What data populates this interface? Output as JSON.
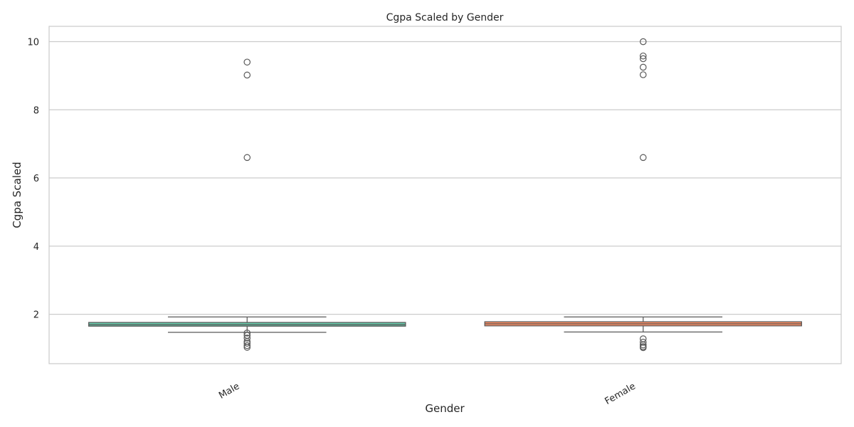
{
  "chart_data": {
    "type": "box",
    "title": "Cgpa Scaled by Gender",
    "xlabel": "Gender",
    "ylabel": "Cgpa Scaled",
    "ylim": [
      0.55,
      10.45
    ],
    "yticks": [
      2,
      4,
      6,
      8,
      10
    ],
    "grid": true,
    "categories": [
      "Male",
      "Female"
    ],
    "colors": [
      "#66c2a5",
      "#fc8d62"
    ],
    "boxes": [
      {
        "category": "Male",
        "whislo": 1.47,
        "q1": 1.65,
        "median": 1.69,
        "q3": 1.76,
        "whishi": 1.92,
        "fliers": [
          1.45,
          1.38,
          1.3,
          1.2,
          1.15,
          1.08,
          1.03,
          6.6,
          9.02,
          9.4
        ]
      },
      {
        "category": "Female",
        "whislo": 1.48,
        "q1": 1.66,
        "median": 1.72,
        "q3": 1.78,
        "whishi": 1.92,
        "fliers": [
          1.28,
          1.18,
          1.1,
          1.05,
          1.02,
          6.6,
          9.03,
          9.25,
          9.5,
          9.58,
          10.0
        ]
      }
    ]
  }
}
